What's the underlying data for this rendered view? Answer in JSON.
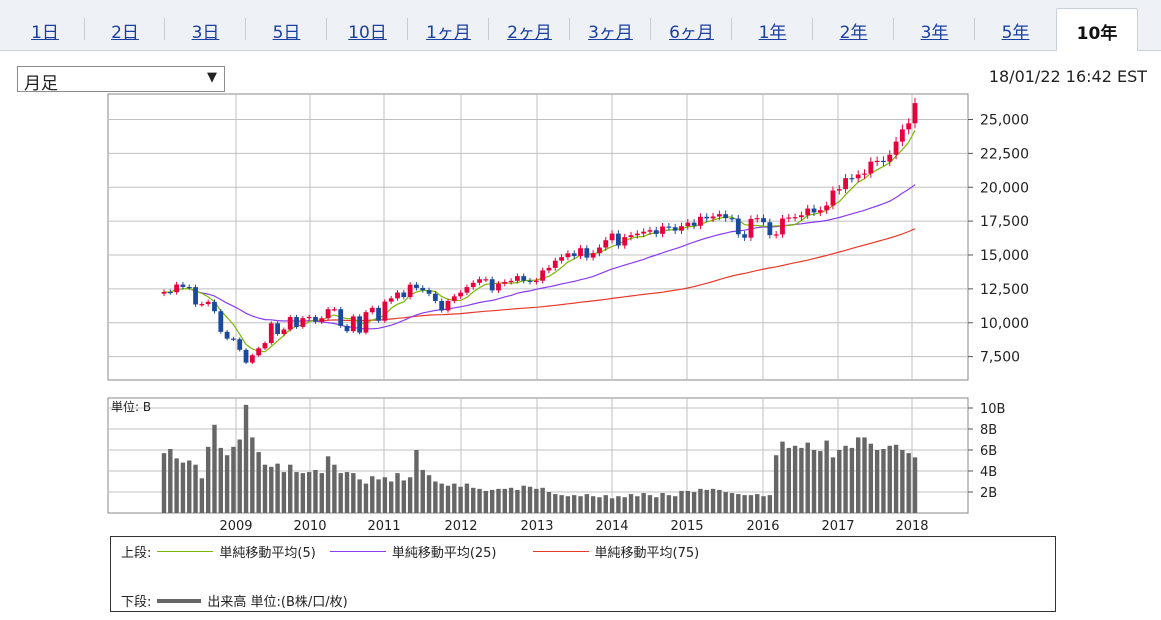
{
  "tabs": [
    "1日",
    "2日",
    "3日",
    "5日",
    "10日",
    "1ヶ月",
    "2ヶ月",
    "3ヶ月",
    "6ヶ月",
    "1年",
    "2年",
    "3年",
    "5年",
    "10年"
  ],
  "active_tab": 13,
  "selector": {
    "value": "月足",
    "arrow": "▼"
  },
  "timestamp": "18/01/22 16:42 EST",
  "colors": {
    "up": "#e8003c",
    "down": "#1a4a9e",
    "ma5": "#7ab800",
    "ma25": "#8a3cf0",
    "ma75": "#e83a2a",
    "volume": "#666666"
  },
  "volume_unit_label": "単位: B",
  "legend": {
    "upper_label": "上段:",
    "lower_label": "下段:",
    "ma5_label": "単純移動平均(5)",
    "ma25_label": "単純移動平均(25)",
    "ma75_label": "単純移動平均(75)",
    "volume_label": "出来高 単位:(B株/口/枚)"
  },
  "chart_data": {
    "type": "candlestick",
    "price_ticks": [
      "25,000",
      "22,500",
      "20,000",
      "17,500",
      "15,000",
      "12,500",
      "10,000",
      "7,500"
    ],
    "price_tick_values": [
      25000,
      22500,
      20000,
      17500,
      15000,
      12500,
      10000,
      7500
    ],
    "price_range": [
      5600,
      27000
    ],
    "volume_ticks": [
      "10B",
      "8B",
      "6B",
      "4B",
      "2B"
    ],
    "volume_tick_values": [
      10,
      8,
      6,
      4,
      2
    ],
    "volume_range": [
      0,
      11
    ],
    "x_labels": [
      "2009",
      "2010",
      "2011",
      "2012",
      "2013",
      "2014",
      "2015",
      "2016",
      "2017",
      "2018"
    ],
    "start": "2008-02",
    "months": 120,
    "close": [
      12270,
      12260,
      12820,
      12640,
      12630,
      11350,
      11380,
      11540,
      10850,
      9330,
      8830,
      8780,
      8000,
      7060,
      7600,
      8110,
      8500,
      9960,
      9170,
      9500,
      10420,
      9700,
      10340,
      10430,
      10070,
      10330,
      11000,
      11000,
      9770,
      9380,
      10470,
      9270,
      10780,
      11100,
      10150,
      11560,
      11800,
      12230,
      11900,
      12810,
      12570,
      12410,
      12140,
      11610,
      10910,
      11610,
      11950,
      12220,
      12630,
      12950,
      13210,
      13210,
      12390,
      12880,
      13010,
      13090,
      13440,
      13100,
      13020,
      13100,
      13860,
      14050,
      14580,
      14840,
      15120,
      14920,
      15500,
      14810,
      15130,
      15550,
      16090,
      16580,
      15700,
      16320,
      16460,
      16580,
      16720,
      16830,
      16560,
      17100,
      17050,
      16800,
      17130,
      17390,
      17160,
      17820,
      17700,
      17840,
      18010,
      17720,
      17690,
      16530,
      16280,
      17660,
      17720,
      17420,
      16470,
      16520,
      17690,
      17770,
      17790,
      17930,
      18430,
      18140,
      18310,
      18650,
      19760,
      19860,
      20670,
      20660,
      20940,
      21010,
      21890,
      21950,
      21890,
      22400,
      23370,
      24270,
      24720,
      26210
    ],
    "volume": [
      5.7,
      6.1,
      5.2,
      4.8,
      5.0,
      4.6,
      3.3,
      6.3,
      8.4,
      6.2,
      5.5,
      6.3,
      7.0,
      10.3,
      7.2,
      5.8,
      4.6,
      4.4,
      4.7,
      3.9,
      4.6,
      3.9,
      3.8,
      3.9,
      4.1,
      3.8,
      5.4,
      4.6,
      3.8,
      3.9,
      3.8,
      3.2,
      2.8,
      3.5,
      3.2,
      3.4,
      3.0,
      3.8,
      3.1,
      3.4,
      6.0,
      4.1,
      3.6,
      3.0,
      2.8,
      2.6,
      2.8,
      2.5,
      2.8,
      2.4,
      2.3,
      2.1,
      2.2,
      2.3,
      2.3,
      2.4,
      2.2,
      2.6,
      2.5,
      2.3,
      2.4,
      2.0,
      1.8,
      1.7,
      1.6,
      1.7,
      1.6,
      1.8,
      1.6,
      1.5,
      1.7,
      1.4,
      1.6,
      1.5,
      1.8,
      1.6,
      1.9,
      1.7,
      1.5,
      1.9,
      1.7,
      1.6,
      2.1,
      2.1,
      2.0,
      2.3,
      2.2,
      2.3,
      2.2,
      2.0,
      1.9,
      1.8,
      1.7,
      1.7,
      1.8,
      1.6,
      1.7,
      5.5,
      6.8,
      6.2,
      6.4,
      6.2,
      6.7,
      6.0,
      5.9,
      6.9,
      5.3,
      6.0,
      6.4,
      6.2,
      7.2,
      7.2,
      6.6,
      6.0,
      6.1,
      6.4,
      6.5,
      6.0,
      5.7,
      5.3
    ],
    "ma_series": [
      {
        "name": "単純移動平均(5)",
        "key": "ma5",
        "period": 5
      },
      {
        "name": "単純移動平均(25)",
        "key": "ma25",
        "period": 25
      },
      {
        "name": "単純移動平均(75)",
        "key": "ma75",
        "period": 75
      }
    ]
  }
}
